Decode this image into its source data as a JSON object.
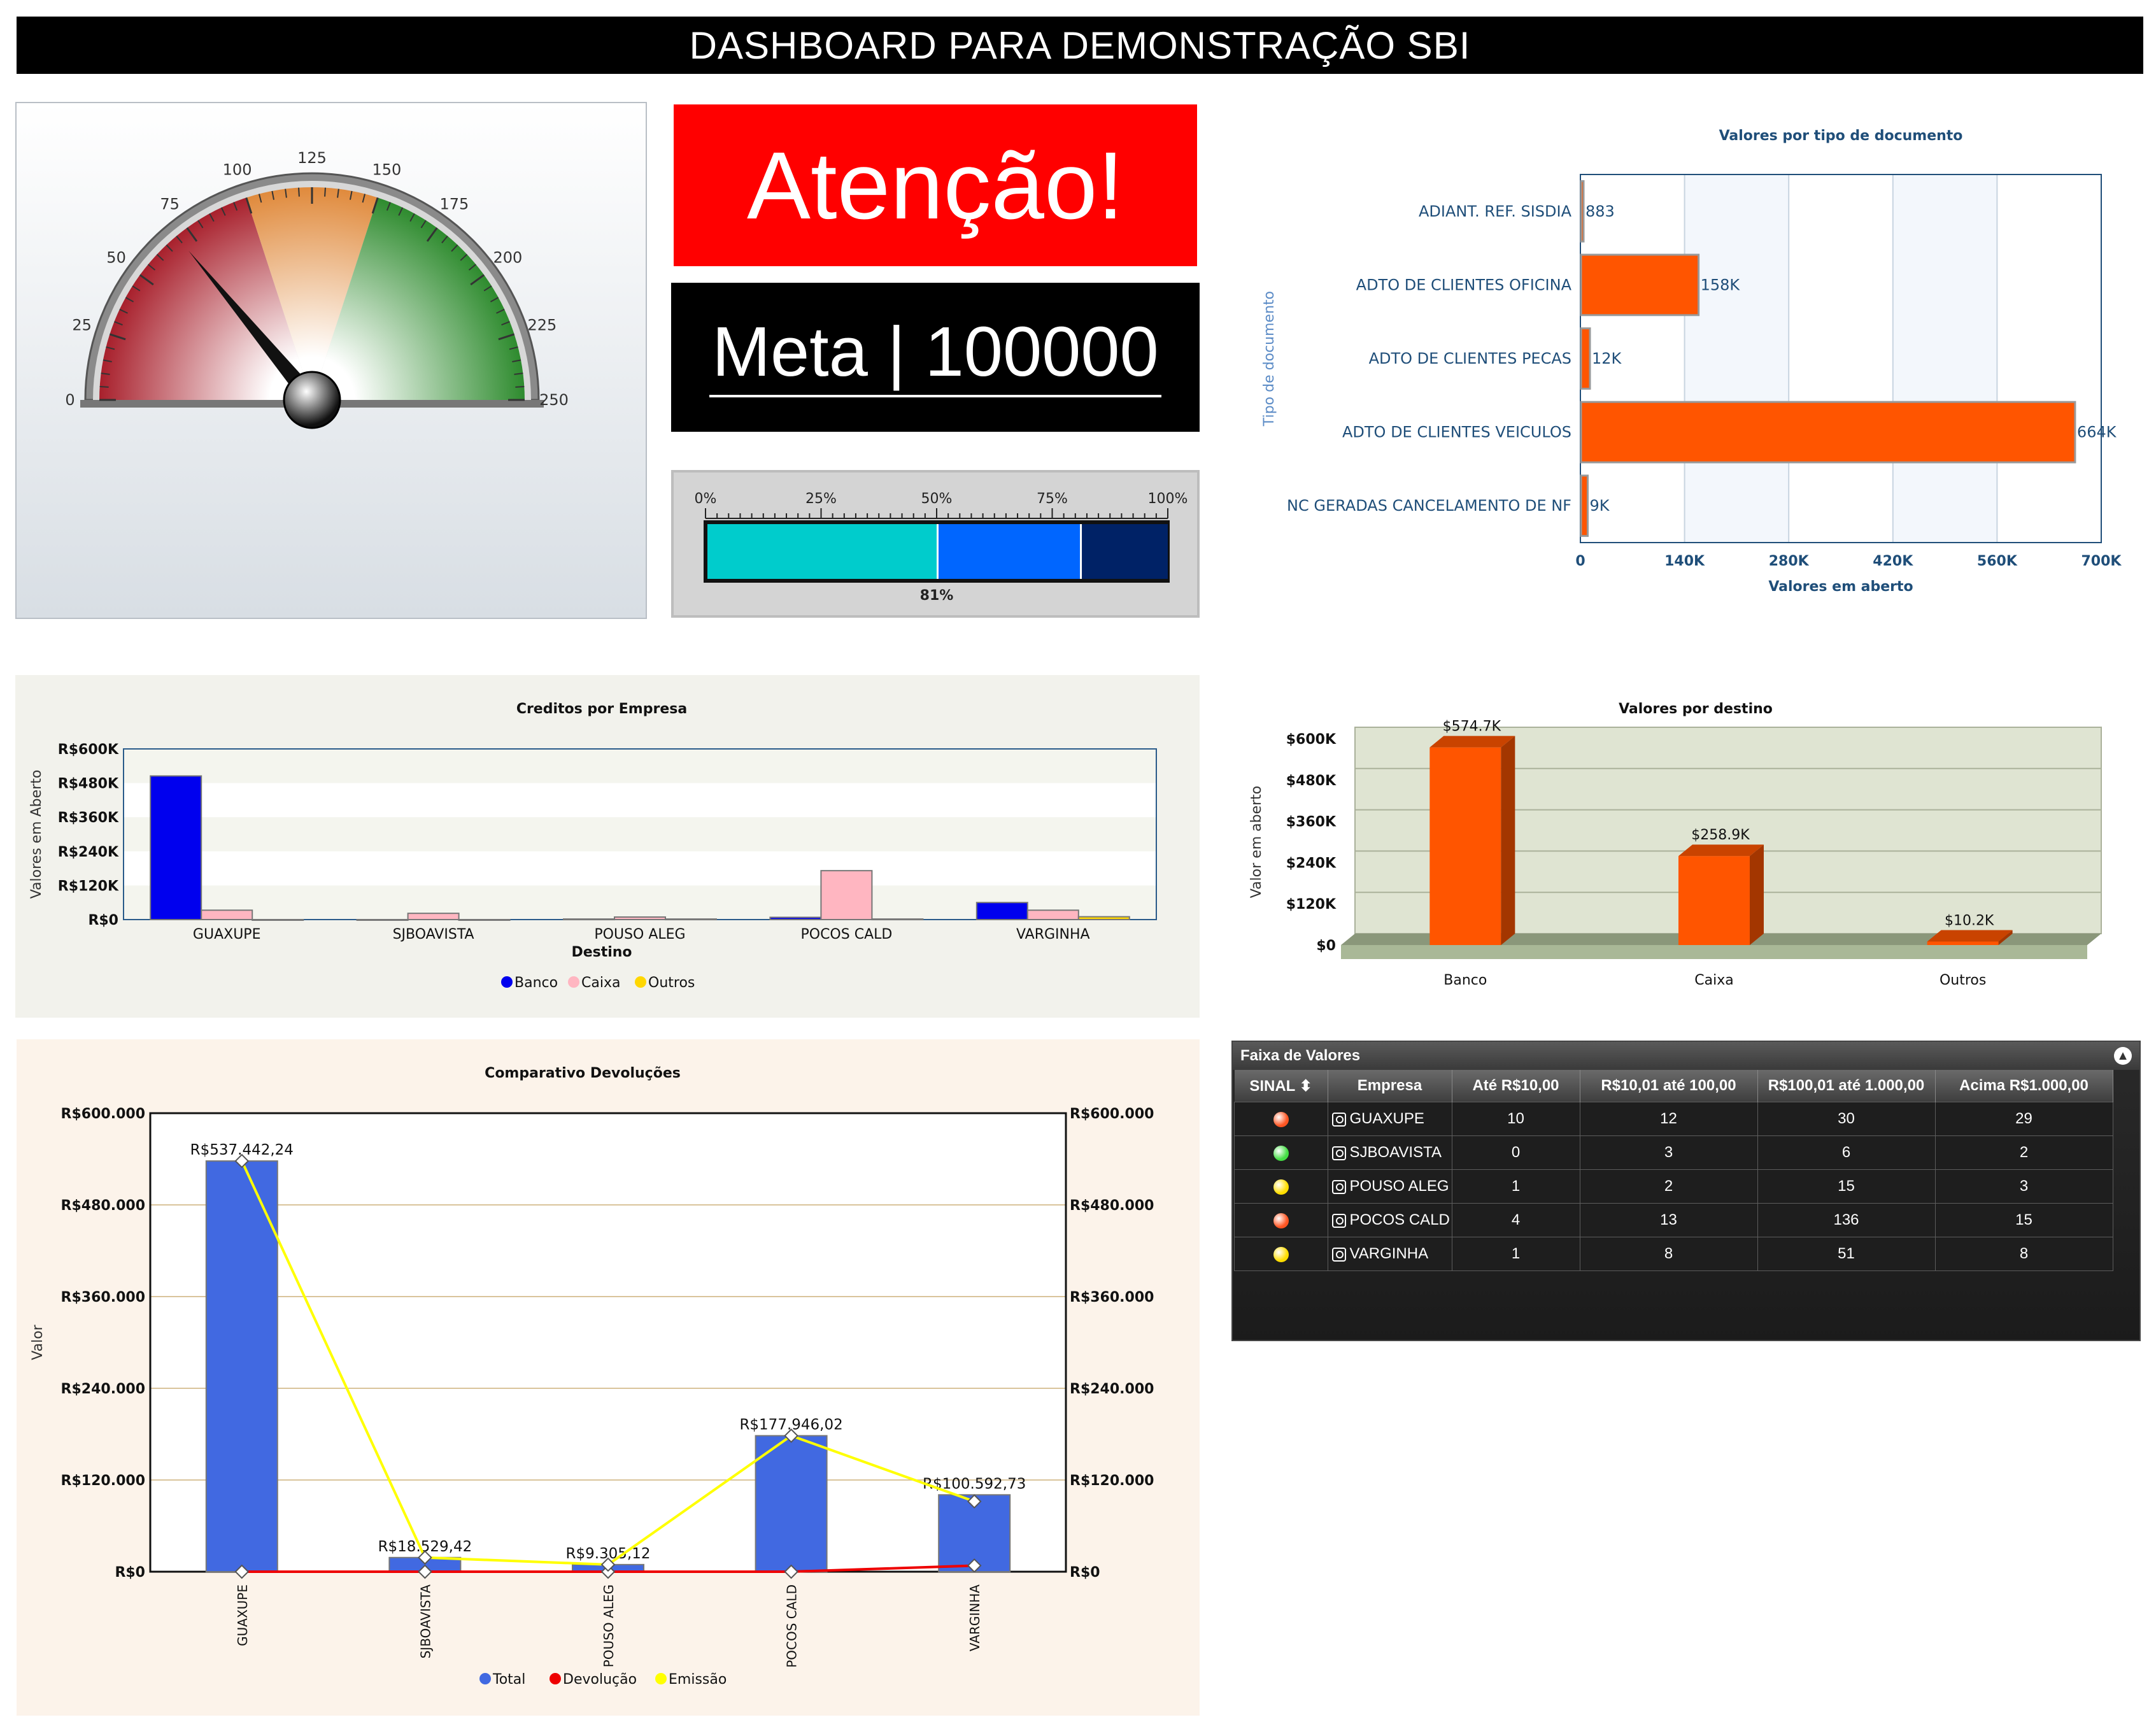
{
  "page_title": "DASHBOARD PARA DEMONSTRAÇÃO SBI",
  "attention": "Atenção!",
  "meta": "Meta | 100000",
  "gauge": {
    "ticks": [
      "0",
      "25",
      "50",
      "75",
      "100",
      "125",
      "150",
      "175",
      "200",
      "225",
      "250"
    ],
    "value": 70,
    "min": 0,
    "max": 250,
    "bands": [
      {
        "from": 0,
        "to": 100,
        "color": "#a8202c"
      },
      {
        "from": 100,
        "to": 150,
        "color": "#e08a3c"
      },
      {
        "from": 150,
        "to": 250,
        "color": "#2e8b2e"
      }
    ]
  },
  "progress": {
    "ticks": [
      "0%",
      "25%",
      "50%",
      "75%",
      "100%"
    ],
    "label": "81%",
    "value": 0.81,
    "bands": [
      {
        "from": 0,
        "to": 0.5,
        "color": "#00cccc"
      },
      {
        "from": 0.5,
        "to": 0.81,
        "color": "#0066ff"
      },
      {
        "from": 0.81,
        "to": 1,
        "color": "#002266"
      }
    ]
  },
  "chart_data": [
    {
      "id": "doc",
      "type": "bar",
      "orientation": "horizontal",
      "title": "Valores por tipo de documento",
      "xlabel": "Valores em aberto",
      "ylabel": "Tipo de documento",
      "categories": [
        "ADIANT. REF. SISDIA",
        "ADTO DE CLIENTES OFICINA",
        "ADTO DE CLIENTES PECAS",
        "ADTO DE CLIENTES VEICULOS",
        "NC GERADAS CANCELAMENTO DE NF"
      ],
      "values": [
        883,
        158000,
        12000,
        664000,
        9000
      ],
      "data_labels": [
        "883",
        "158K",
        "12K",
        "664K",
        "9K"
      ],
      "xlim": [
        0,
        700000
      ],
      "ticks": [
        "0",
        "140K",
        "280K",
        "420K",
        "560K",
        "700K"
      ],
      "color": "#ff5500"
    },
    {
      "id": "credits",
      "type": "bar",
      "title": "Creditos por Empresa",
      "xlabel": "Destino",
      "ylabel": "Valores em Aberto",
      "categories": [
        "GUAXUPE",
        "SJBOAVISTA",
        "POUSO ALEG",
        "POCOS CALD",
        "VARGINHA"
      ],
      "series": [
        {
          "name": "Banco",
          "color": "#0000ee",
          "values": [
            505000,
            0,
            2000,
            8000,
            60000
          ]
        },
        {
          "name": "Caixa",
          "color": "#ffb6c1",
          "values": [
            33000,
            22000,
            9000,
            172000,
            33000
          ]
        },
        {
          "name": "Outros",
          "color": "#ffd700",
          "values": [
            0,
            0,
            2000,
            2000,
            10000
          ]
        }
      ],
      "ylim": [
        0,
        600000
      ],
      "ticks": [
        "R$0",
        "R$120K",
        "R$240K",
        "R$360K",
        "R$480K",
        "R$600K"
      ],
      "legend": "bottom"
    },
    {
      "id": "destino",
      "type": "bar",
      "title": "Valores por destino",
      "ylabel": "Valor em aberto",
      "categories": [
        "Banco",
        "Caixa",
        "Outros"
      ],
      "values": [
        574700,
        258900,
        10200
      ],
      "data_labels": [
        "$574.7K",
        "$258.9K",
        "$10.2K"
      ],
      "ylim": [
        0,
        600000
      ],
      "ticks": [
        "$0",
        "$120K",
        "$240K",
        "$360K",
        "$480K",
        "$600K"
      ],
      "color": "#ff5500"
    },
    {
      "id": "devolucoes",
      "type": "bar",
      "title": "Comparativo Devoluções",
      "ylabel": "Valor",
      "categories": [
        "GUAXUPE",
        "SJBOAVISTA",
        "POUSO ALEG",
        "POCOS CALD",
        "VARGINHA"
      ],
      "series": [
        {
          "name": "Total",
          "type": "bar",
          "color": "#4169e1",
          "values": [
            537442.24,
            18529.42,
            9305.12,
            177946.02,
            100592.73
          ]
        },
        {
          "name": "Devolução",
          "type": "line",
          "color": "#ee0000",
          "values": [
            0,
            0,
            0,
            0,
            8000
          ]
        },
        {
          "name": "Emissão",
          "type": "line",
          "color": "#ffff00",
          "values": [
            537442.24,
            18529.42,
            9305.12,
            177946.02,
            92000
          ]
        }
      ],
      "data_labels": [
        "R$537.442,24",
        "R$18.529,42",
        "R$9.305,12",
        "R$177.946,02",
        "R$100.592,73"
      ],
      "ylim": [
        0,
        600000
      ],
      "ticks": [
        "R$0",
        "R$120.000",
        "R$240.000",
        "R$360.000",
        "R$480.000",
        "R$600.000"
      ],
      "legend": "bottom"
    }
  ],
  "faixa": {
    "title": "Faixa de Valores",
    "toggle": "▲",
    "headers": [
      "SINAL ⬍",
      "Empresa",
      "Até R$10,00",
      "R$10,01 até 100,00",
      "R$100,01 até 1.000,00",
      "Acima R$1.000,00"
    ],
    "rows": [
      {
        "signal": "#ff5522",
        "empresa": "GUAXUPE",
        "c1": "10",
        "c2": "12",
        "c3": "30",
        "c4": "29"
      },
      {
        "signal": "#44dd44",
        "empresa": "SJBOAVISTA",
        "c1": "0",
        "c2": "3",
        "c3": "6",
        "c4": "2"
      },
      {
        "signal": "#ffdd00",
        "empresa": "POUSO ALEG",
        "c1": "1",
        "c2": "2",
        "c3": "15",
        "c4": "3"
      },
      {
        "signal": "#ff5522",
        "empresa": "POCOS CALD",
        "c1": "4",
        "c2": "13",
        "c3": "136",
        "c4": "15"
      },
      {
        "signal": "#ffdd00",
        "empresa": "VARGINHA",
        "c1": "1",
        "c2": "8",
        "c3": "51",
        "c4": "8"
      }
    ]
  }
}
